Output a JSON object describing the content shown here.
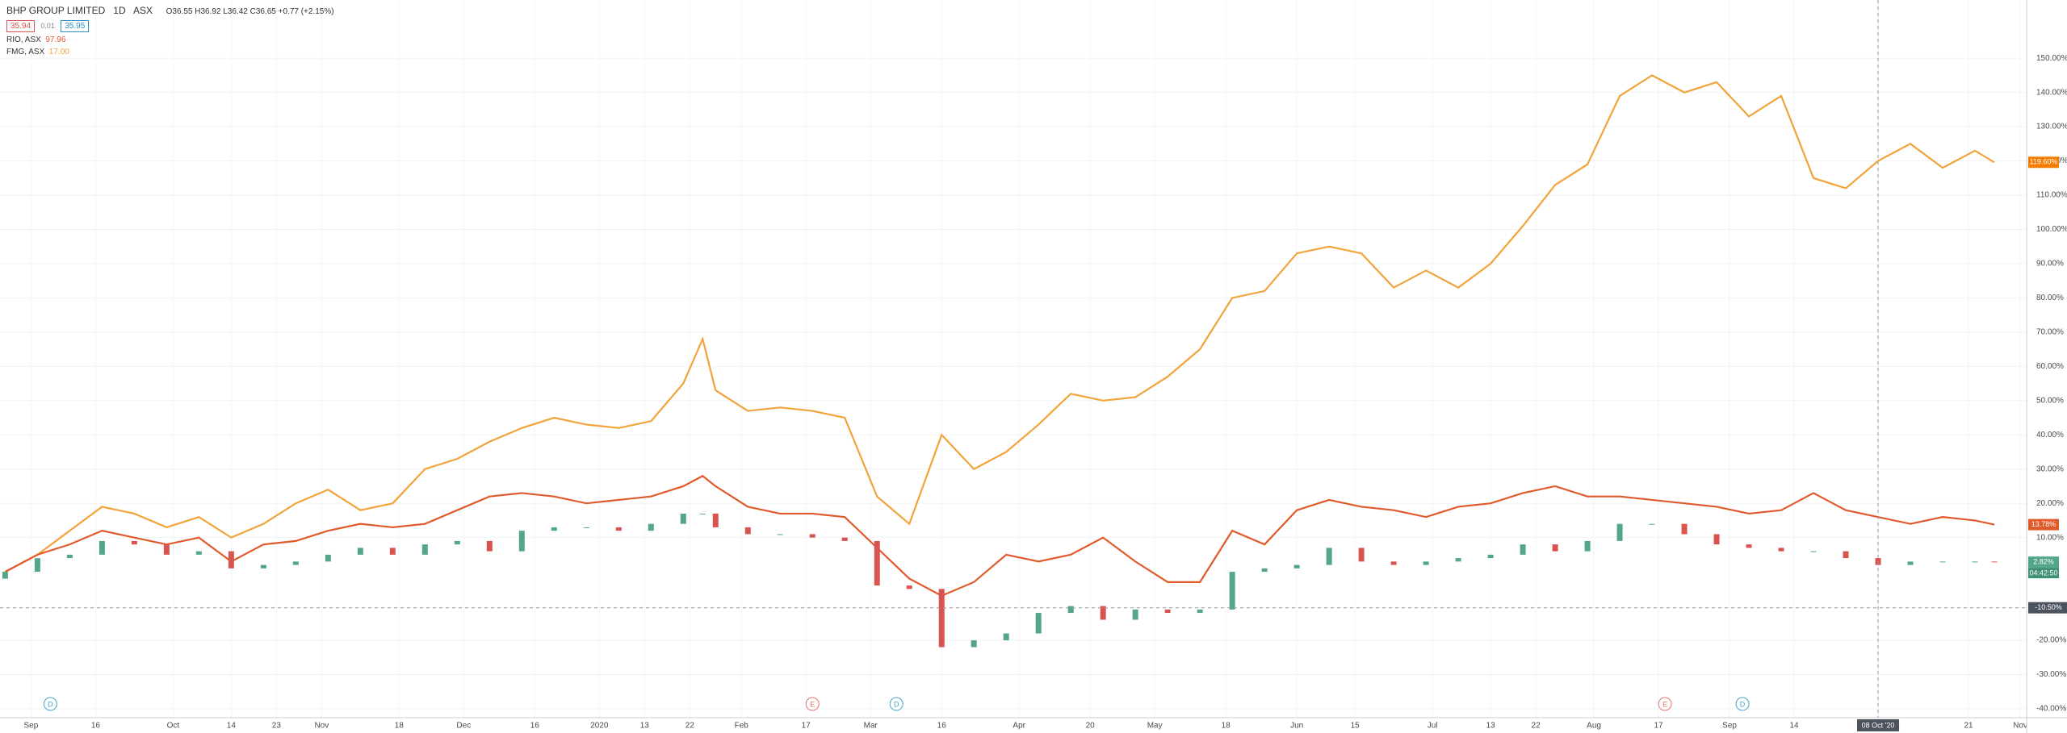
{
  "header": {
    "symbol": "BHP GROUP LIMITED",
    "interval": "1D",
    "exchange": "ASX",
    "ohlc": "O36.55 H36.92 L36.42 C36.65 +0.77 (+2.15%)",
    "bid": "35.94",
    "spread": "0.01",
    "ask": "35.95",
    "compare": [
      {
        "name": "RIO, ASX",
        "price": "97.96"
      },
      {
        "name": "FMG, ASX",
        "price": "17.00"
      }
    ]
  },
  "chart_data": {
    "type": "line",
    "xlim": [
      -0.8,
      313
    ],
    "ylim": [
      -42.6,
      167
    ],
    "grid": true,
    "xticks": [
      {
        "value": 4,
        "label": "Sep"
      },
      {
        "value": 14,
        "label": "16"
      },
      {
        "value": 26,
        "label": "Oct"
      },
      {
        "value": 35,
        "label": "14"
      },
      {
        "value": 42,
        "label": "23"
      },
      {
        "value": 49,
        "label": "Nov"
      },
      {
        "value": 61,
        "label": "18"
      },
      {
        "value": 71,
        "label": "Dec"
      },
      {
        "value": 82,
        "label": "16"
      },
      {
        "value": 92,
        "label": "2020"
      },
      {
        "value": 99,
        "label": "13"
      },
      {
        "value": 106,
        "label": "22"
      },
      {
        "value": 114,
        "label": "Feb"
      },
      {
        "value": 124,
        "label": "17"
      },
      {
        "value": 134,
        "label": "Mar"
      },
      {
        "value": 145,
        "label": "16"
      },
      {
        "value": 157,
        "label": "Apr"
      },
      {
        "value": 168,
        "label": "20"
      },
      {
        "value": 178,
        "label": "May"
      },
      {
        "value": 189,
        "label": "18"
      },
      {
        "value": 200,
        "label": "Jun"
      },
      {
        "value": 209,
        "label": "15"
      },
      {
        "value": 221,
        "label": "Jul"
      },
      {
        "value": 230,
        "label": "13"
      },
      {
        "value": 237,
        "label": "22"
      },
      {
        "value": 246,
        "label": "Aug"
      },
      {
        "value": 256,
        "label": "17"
      },
      {
        "value": 267,
        "label": "Sep"
      },
      {
        "value": 277,
        "label": "14"
      },
      {
        "value": 290,
        "label": "Oct"
      },
      {
        "value": 304,
        "label": "21"
      },
      {
        "value": 312,
        "label": "Nov"
      }
    ],
    "yticks": [
      {
        "value": 150,
        "label": "150.00%"
      },
      {
        "value": 140,
        "label": "140.00%"
      },
      {
        "value": 130,
        "label": "130.00%"
      },
      {
        "value": 120,
        "label": "120.00%"
      },
      {
        "value": 110,
        "label": "110.00%"
      },
      {
        "value": 100,
        "label": "100.00%"
      },
      {
        "value": 90,
        "label": "90.00%"
      },
      {
        "value": 80,
        "label": "80.00%"
      },
      {
        "value": 70,
        "label": "70.00%"
      },
      {
        "value": 60,
        "label": "60.00%"
      },
      {
        "value": 50,
        "label": "50.00%"
      },
      {
        "value": 40,
        "label": "40.00%"
      },
      {
        "value": 30,
        "label": "30.00%"
      },
      {
        "value": 20,
        "label": "20.00%"
      },
      {
        "value": 10,
        "label": "10.00%"
      },
      {
        "value": -20,
        "label": "-20.00%"
      },
      {
        "value": -30,
        "label": "-30.00%"
      },
      {
        "value": -40,
        "label": "-40.00%"
      }
    ],
    "x": [
      0,
      5,
      10,
      15,
      20,
      25,
      30,
      35,
      40,
      45,
      50,
      55,
      60,
      65,
      70,
      75,
      80,
      85,
      90,
      95,
      100,
      105,
      108,
      110,
      115,
      120,
      125,
      130,
      135,
      140,
      145,
      150,
      155,
      160,
      165,
      170,
      175,
      180,
      185,
      190,
      195,
      200,
      205,
      210,
      215,
      220,
      225,
      230,
      235,
      240,
      245,
      250,
      255,
      260,
      265,
      270,
      275,
      280,
      285,
      290,
      295,
      300,
      305,
      308
    ],
    "series": [
      {
        "name": "FMG, ASX",
        "type": "line",
        "color": "#f2a33a",
        "price_label": "119.60%",
        "values": [
          0,
          5,
          12,
          19,
          17,
          13,
          16,
          10,
          14,
          20,
          24,
          18,
          20,
          30,
          33,
          38,
          42,
          45,
          43,
          42,
          44,
          55,
          68,
          53,
          47,
          48,
          47,
          45,
          22,
          14,
          40,
          30,
          35,
          43,
          52,
          50,
          51,
          57,
          65,
          80,
          82,
          93,
          95,
          93,
          83,
          88,
          83,
          90,
          101,
          113,
          119,
          139,
          145,
          140,
          143,
          133,
          139,
          115,
          112,
          120,
          125,
          118,
          123,
          119.6
        ]
      },
      {
        "name": "RIO, ASX",
        "type": "line",
        "color": "#e05a2b",
        "price_label": "13.78%",
        "values": [
          0,
          5,
          8,
          12,
          10,
          8,
          10,
          3,
          8,
          9,
          12,
          14,
          13,
          14,
          18,
          22,
          23,
          22,
          20,
          21,
          22,
          25,
          28,
          25,
          19,
          17,
          17,
          16,
          7,
          -2,
          -7,
          -3,
          5,
          3,
          5,
          10,
          3,
          -3,
          -3,
          12,
          8,
          18,
          21,
          19,
          18,
          16,
          19,
          20,
          23,
          25,
          22,
          22,
          21,
          20,
          19,
          17,
          18,
          23,
          18,
          16,
          14,
          16,
          15,
          13.78
        ]
      },
      {
        "name": "BHP GROUP LIMITED",
        "type": "candlestick",
        "color": "#53a68a",
        "down_color": "#d9534f",
        "price_label": "2.82%",
        "countdown": "04:42:50",
        "open": [
          -2,
          0,
          4,
          5,
          9,
          8,
          5,
          6,
          1,
          2,
          3,
          5,
          7,
          5,
          8,
          9,
          6,
          12,
          13,
          13,
          12,
          14,
          17,
          17,
          13,
          11,
          11,
          10,
          9,
          -4,
          -5,
          -22,
          -20,
          -18,
          -12,
          -10,
          -14,
          -11,
          -12,
          -11,
          0,
          1,
          2,
          7,
          3,
          2,
          3,
          4,
          5,
          8,
          6,
          9,
          14,
          14,
          11,
          8,
          7,
          6,
          6,
          4,
          2,
          3,
          3,
          3
        ],
        "values": [
          0,
          4,
          5,
          9,
          8,
          5,
          6,
          1,
          2,
          3,
          5,
          7,
          5,
          8,
          9,
          6,
          12,
          13,
          13,
          12,
          14,
          17,
          17,
          13,
          11,
          11,
          10,
          9,
          -4,
          -5,
          -22,
          -20,
          -18,
          -12,
          -10,
          -14,
          -11,
          -12,
          -11,
          0,
          1,
          2,
          7,
          3,
          2,
          3,
          4,
          5,
          8,
          6,
          9,
          14,
          14,
          11,
          8,
          7,
          6,
          6,
          4,
          2,
          3,
          3,
          3,
          2.82
        ]
      }
    ],
    "events": [
      {
        "label": "D",
        "x": 7
      },
      {
        "label": "E",
        "x": 125
      },
      {
        "label": "D",
        "x": 138
      },
      {
        "label": "E",
        "x": 257
      },
      {
        "label": "D",
        "x": 269
      }
    ],
    "crosshair": {
      "y": -10.5,
      "y_label": "-10.50%",
      "x": 290,
      "x_label": "08 Oct '20"
    }
  }
}
